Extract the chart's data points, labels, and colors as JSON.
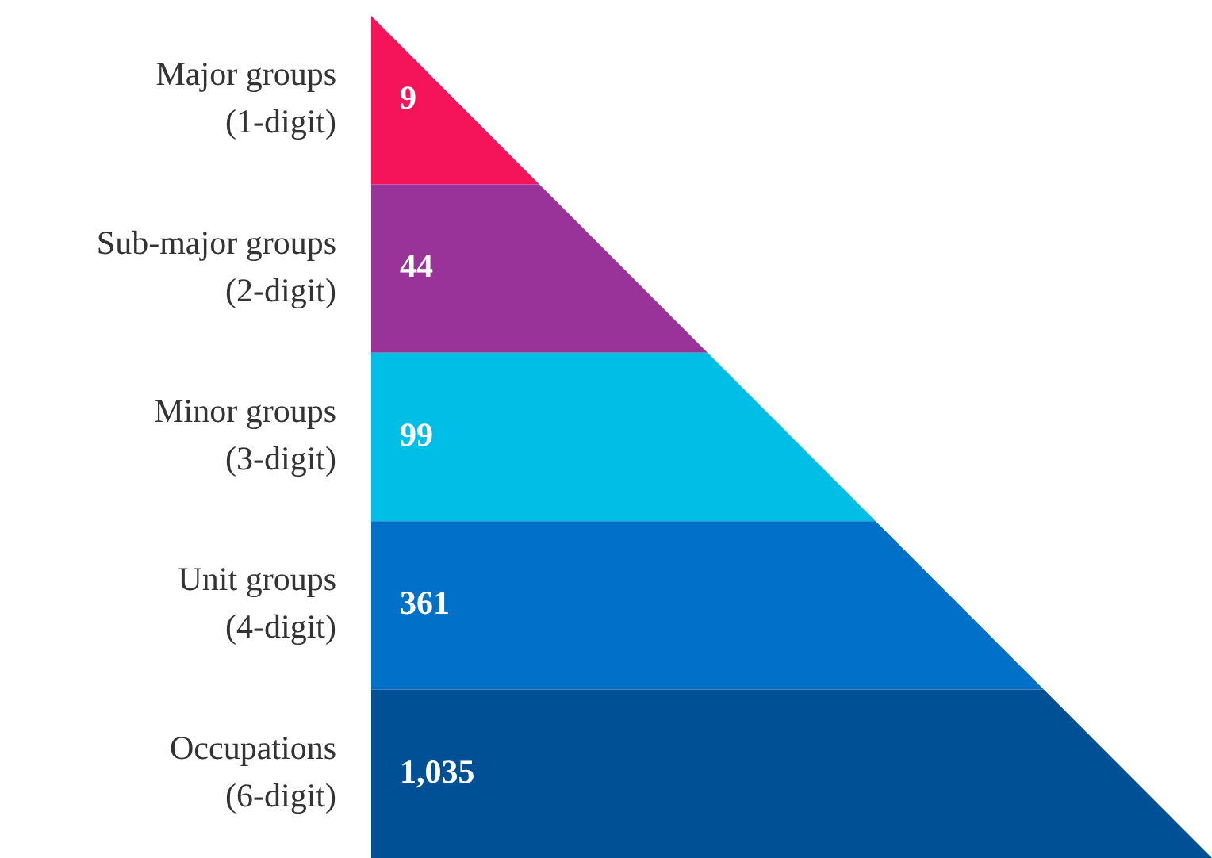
{
  "chart_data": {
    "type": "other",
    "categories": [
      "Major groups\n(1-digit)",
      "Sub-major groups\n(2-digit)",
      "Minor groups\n(3-digit)",
      "Unit groups\n(4-digit)",
      "Occupations\n(6-digit)"
    ],
    "values": [
      9,
      44,
      99,
      361,
      1035
    ],
    "value_labels": [
      "9",
      "44",
      "99",
      "361",
      "1,035"
    ],
    "colors": [
      "#f5145a",
      "#993399",
      "#00bee6",
      "#0070c8",
      "#005096"
    ]
  }
}
